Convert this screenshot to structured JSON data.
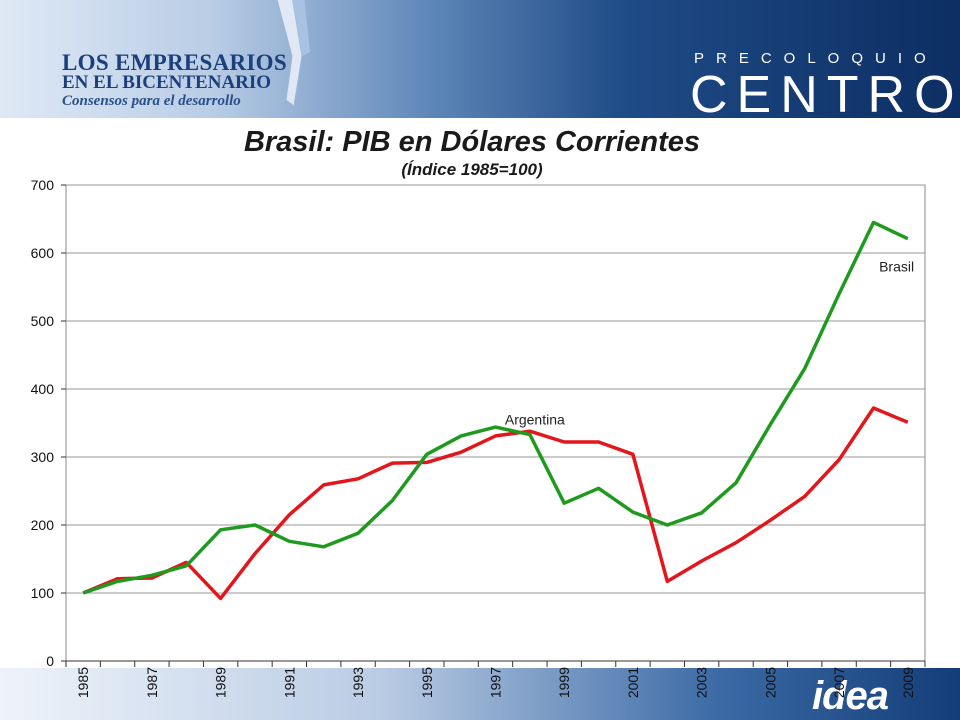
{
  "header": {
    "left_logo_line1": "LOS EMPRESARIOS",
    "left_logo_line2": "EN EL BICENTENARIO",
    "left_logo_line3": "Consensos para el desarrollo",
    "right_logo_sub": "PRECOLOQUIO",
    "right_logo_main": "CENTRO"
  },
  "footer": {
    "logo_text": "idea"
  },
  "colors": {
    "brasil": "#1f9a1f",
    "argentina": "#e3171b",
    "grid": "#9a9a9a"
  },
  "chart_data": {
    "type": "line",
    "title": "Brasil: PIB en Dólares Corrientes",
    "subtitle": "(Índice 1985=100)",
    "xlabel": "",
    "ylabel": "",
    "ylim": [
      0,
      700
    ],
    "yticks": [
      0,
      100,
      200,
      300,
      400,
      500,
      600,
      700
    ],
    "grid": true,
    "x": [
      1985,
      1986,
      1987,
      1988,
      1989,
      1990,
      1991,
      1992,
      1993,
      1994,
      1995,
      1996,
      1997,
      1998,
      1999,
      2000,
      2001,
      2002,
      2003,
      2004,
      2005,
      2006,
      2007,
      2008,
      2009
    ],
    "xtick_labels": [
      "1985",
      "1987",
      "1989",
      "1991",
      "1993",
      "1995",
      "1997",
      "1999",
      "2001",
      "2003",
      "2005",
      "2007",
      "2009"
    ],
    "series": [
      {
        "name": "Brasil",
        "color": "#1f9a1f",
        "values": [
          100,
          117,
          126,
          140,
          193,
          200,
          176,
          168,
          188,
          236,
          304,
          331,
          344,
          333,
          232,
          254,
          219,
          200,
          218,
          262,
          348,
          430,
          540,
          645,
          621
        ]
      },
      {
        "name": "Argentina",
        "color": "#e3171b",
        "values": [
          100,
          121,
          122,
          145,
          92,
          158,
          215,
          259,
          268,
          291,
          292,
          307,
          331,
          338,
          322,
          322,
          304,
          117,
          147,
          174,
          207,
          242,
          296,
          372,
          351
        ]
      }
    ]
  }
}
